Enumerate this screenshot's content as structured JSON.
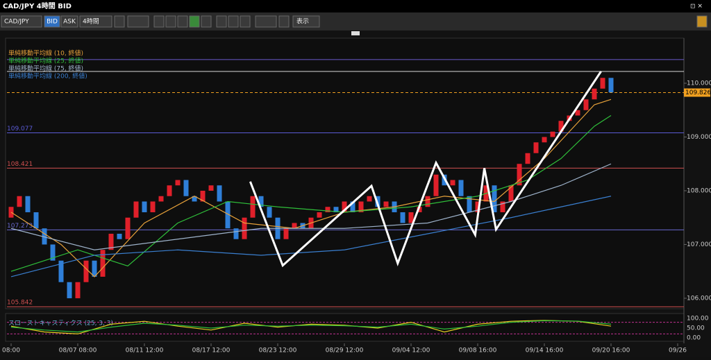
{
  "window": {
    "title": "CAD/JPY 4時間 BID"
  },
  "toolbar": {
    "symbol": "CAD/JPY",
    "bid": "BID",
    "ask": "ASK",
    "period": "4時間",
    "view": "表示"
  },
  "chart_data": {
    "type": "candlestick",
    "open": [
      107.5,
      107.7,
      107.9,
      107.6,
      107.3,
      107.0,
      106.7,
      106.3,
      106.0,
      106.3,
      106.7,
      106.4,
      106.9,
      107.2,
      107.1,
      107.5,
      107.8,
      107.6,
      107.8,
      107.9,
      108.1,
      108.2,
      107.9,
      107.8,
      108.0,
      108.1,
      107.8,
      107.3,
      107.1,
      107.5,
      107.9,
      107.7,
      107.5,
      107.1,
      107.3,
      107.4,
      107.3,
      107.5,
      107.6,
      107.7,
      107.6,
      107.8,
      107.6,
      107.8,
      107.9,
      107.7,
      107.8,
      107.6,
      107.4,
      107.6,
      107.7,
      107.9,
      108.3,
      108.1,
      108.2,
      107.9,
      107.6,
      107.8,
      108.1,
      107.6,
      107.8,
      108.1,
      108.5,
      108.7,
      108.9,
      109.0,
      109.1,
      109.3,
      109.4,
      109.5,
      109.7,
      109.9,
      110.1
    ],
    "close": [
      107.7,
      107.9,
      107.6,
      107.3,
      107.0,
      106.7,
      106.3,
      106.0,
      106.3,
      106.7,
      106.4,
      106.9,
      107.2,
      107.1,
      107.5,
      107.8,
      107.6,
      107.8,
      107.9,
      108.1,
      108.2,
      107.9,
      107.8,
      108.0,
      108.1,
      107.8,
      107.3,
      107.1,
      107.5,
      107.9,
      107.7,
      107.5,
      107.1,
      107.3,
      107.4,
      107.3,
      107.5,
      107.6,
      107.7,
      107.6,
      107.8,
      107.6,
      107.8,
      107.9,
      107.7,
      107.8,
      107.6,
      107.4,
      107.6,
      107.7,
      107.9,
      108.3,
      108.1,
      108.2,
      107.9,
      107.6,
      107.8,
      108.1,
      107.6,
      107.8,
      108.1,
      108.5,
      108.7,
      108.9,
      109.0,
      109.1,
      109.3,
      109.4,
      109.5,
      109.7,
      109.9,
      110.1,
      109.83
    ],
    "up_color": "#e0202a",
    "down_color": "#2f7fd8",
    "series": [
      {
        "name": "単純移動平均線 (10, 終値)",
        "color": "#e8a23a",
        "x": [
          0,
          6,
          10,
          16,
          22,
          28,
          34,
          40,
          46,
          52,
          58,
          64,
          70,
          72
        ],
        "values": [
          107.6,
          107.0,
          106.4,
          107.4,
          107.9,
          107.4,
          107.3,
          107.6,
          107.7,
          107.9,
          107.8,
          108.6,
          109.6,
          109.7
        ]
      },
      {
        "name": "単純移動平均線 (25, 終値)",
        "color": "#2fbf3a",
        "x": [
          0,
          8,
          14,
          20,
          26,
          32,
          40,
          48,
          56,
          62,
          66,
          70,
          72
        ],
        "values": [
          106.5,
          106.9,
          106.6,
          107.4,
          107.8,
          107.7,
          107.6,
          107.7,
          107.9,
          108.2,
          108.6,
          109.2,
          109.4
        ]
      },
      {
        "name": "単純移動平均線 (75, 終値)",
        "color": "#9fb4cc",
        "x": [
          0,
          10,
          20,
          30,
          40,
          50,
          60,
          66,
          72
        ],
        "values": [
          107.3,
          106.9,
          107.1,
          107.3,
          107.3,
          107.4,
          107.8,
          108.1,
          108.5
        ]
      },
      {
        "name": "単純移動平均線 (200, 終値)",
        "color": "#3a7fd0",
        "x": [
          0,
          10,
          20,
          30,
          40,
          50,
          60,
          66,
          72
        ],
        "values": [
          106.4,
          106.8,
          106.9,
          106.8,
          106.9,
          107.2,
          107.5,
          107.7,
          107.9
        ]
      }
    ],
    "levels": [
      {
        "value": 110.44,
        "color": "#6a5acd"
      },
      {
        "value": 110.22,
        "color": "#d8d8d8"
      },
      {
        "value": 109.826,
        "label": "109.826",
        "color": "#f0a020",
        "dashed": true
      },
      {
        "value": 109.077,
        "label": "109.077",
        "color": "#5b5bd6"
      },
      {
        "value": 108.421,
        "label": "108.421",
        "color": "#d05050"
      },
      {
        "value": 107.273,
        "label": "107.273",
        "color": "#6a6ad0"
      },
      {
        "value": 105.842,
        "label": "105.842",
        "color": "#d05050"
      }
    ],
    "zigzag": {
      "color": "#ffffff",
      "x": [
        28.7,
        32.6,
        43.25,
        46.4,
        51,
        55.7,
        56.8,
        58.2,
        70.8
      ],
      "values": [
        108.17,
        106.61,
        108.09,
        106.65,
        108.52,
        107.18,
        108.42,
        107.28,
        110.22
      ]
    },
    "ylim": [
      105.806,
      110.839
    ],
    "yticks": [
      {
        "value": 110,
        "label": "110.000"
      },
      {
        "value": 109,
        "label": "109.000"
      },
      {
        "value": 108,
        "label": "108.000"
      },
      {
        "value": 107,
        "label": "107.000"
      },
      {
        "value": 106,
        "label": "106.000"
      }
    ],
    "xlim": [
      -0.5,
      80.75
    ],
    "xticks": [
      {
        "value": 0,
        "label": "08:00"
      },
      {
        "value": 8,
        "label": "08/07 08:00"
      },
      {
        "value": 16,
        "label": "08/11 12:00"
      },
      {
        "value": 24,
        "label": "08/17 12:00"
      },
      {
        "value": 32,
        "label": "08/23 12:00"
      },
      {
        "value": 40,
        "label": "08/29 12:00"
      },
      {
        "value": 48,
        "label": "09/04 12:00"
      },
      {
        "value": 56,
        "label": "09/08 16:00"
      },
      {
        "value": 64,
        "label": "09/14 16:00"
      },
      {
        "value": 72,
        "label": "09/20 16:00"
      },
      {
        "value": 80,
        "label": "09/26"
      }
    ],
    "oscillator": {
      "title": "スローストキャスティクス (25, 3, 3)",
      "ylim": [
        0,
        100
      ],
      "yticks": [
        {
          "value": 100,
          "label": "100.00"
        },
        {
          "value": 50,
          "label": "50.00"
        },
        {
          "value": 0,
          "label": "0.00"
        }
      ],
      "levels": [
        80,
        20
      ],
      "series": [
        {
          "color": "#e8d020",
          "x": [
            0,
            4,
            8,
            12,
            16,
            20,
            24,
            28,
            32,
            36,
            40,
            44,
            48,
            52,
            56,
            60,
            64,
            68,
            72
          ],
          "values": [
            60,
            30,
            20,
            70,
            85,
            60,
            40,
            75,
            55,
            70,
            65,
            50,
            80,
            30,
            70,
            85,
            90,
            85,
            60
          ]
        },
        {
          "color": "#2fbf3a",
          "x": [
            0,
            4,
            8,
            12,
            16,
            20,
            24,
            28,
            32,
            36,
            40,
            44,
            48,
            52,
            56,
            60,
            64,
            68,
            72
          ],
          "values": [
            55,
            40,
            30,
            55,
            75,
            65,
            50,
            65,
            60,
            65,
            62,
            55,
            70,
            45,
            60,
            80,
            88,
            86,
            70
          ]
        }
      ]
    }
  }
}
